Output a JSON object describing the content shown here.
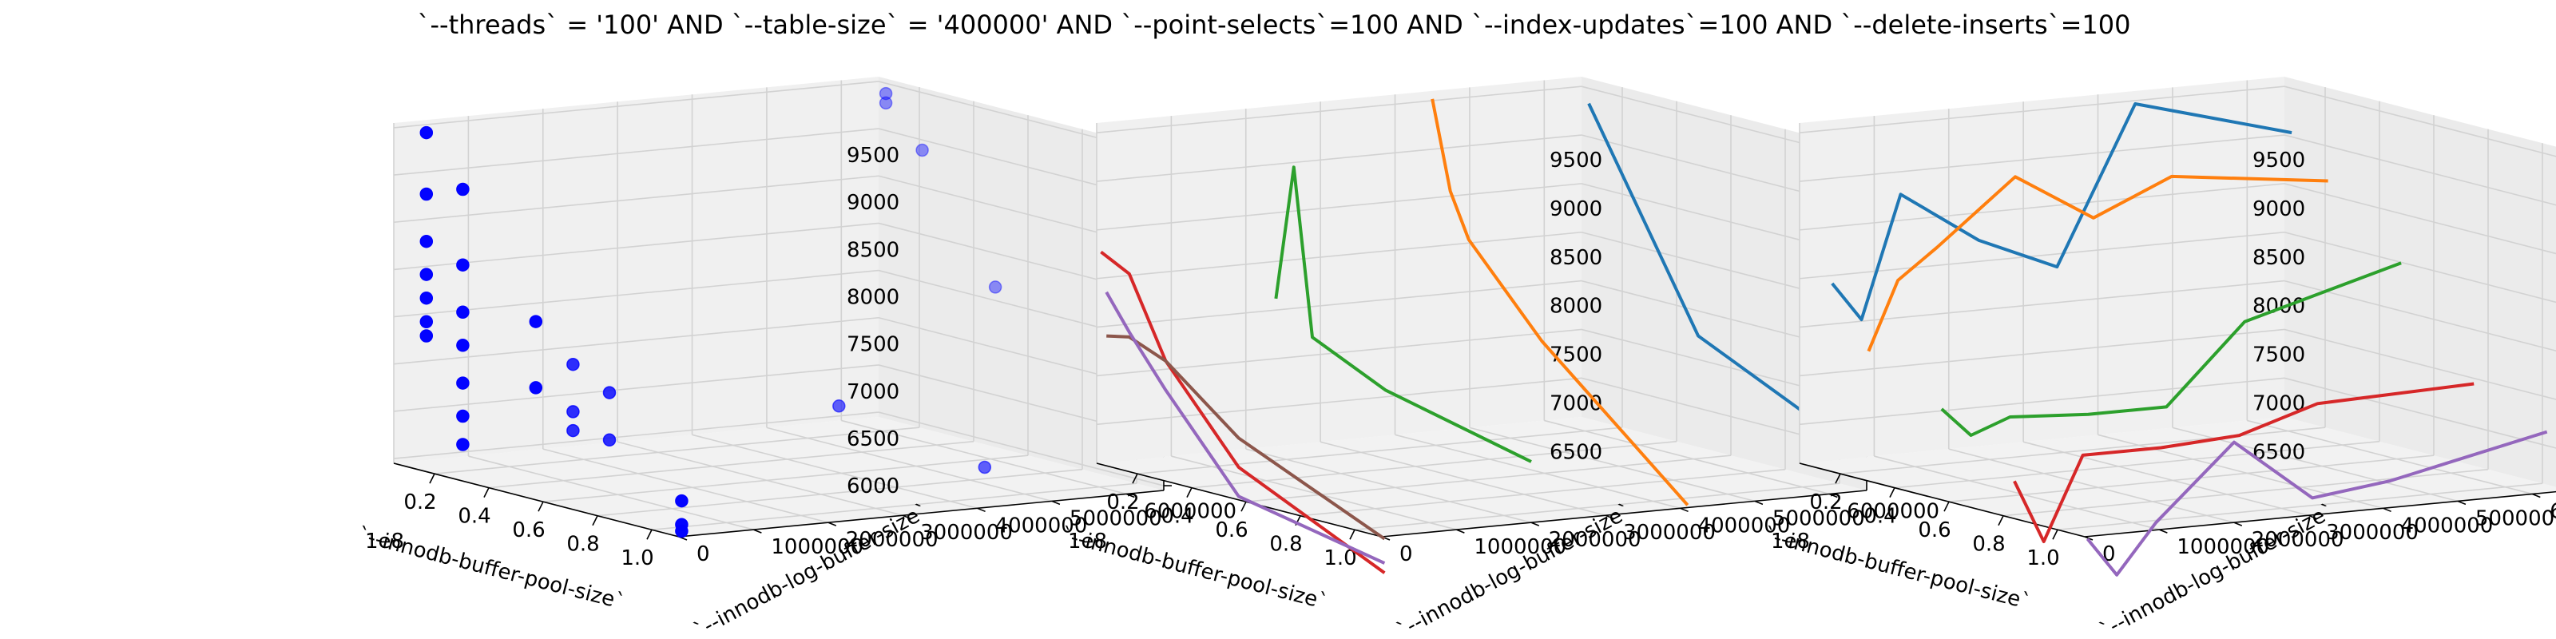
{
  "figure": {
    "title": "`--threads` = '100' AND `--table-size` = '400000'  AND `--point-selects`=100 AND `--index-updates`=100 AND `--delete-inserts`=100"
  },
  "chart_data": [
    {
      "type": "scatter",
      "projection": "3d",
      "xlabel": "`--innodb-buffer-pool-size`",
      "ylabel": "`--innodb-log-buffer-size`",
      "zlabel": "",
      "x_offset_label": "1e8",
      "xlim": [
        0.05,
        1.1
      ],
      "ylim": [
        0,
        6500000
      ],
      "zlim": [
        5950,
        9550
      ],
      "xticks": [
        "0.2",
        "0.4",
        "0.6",
        "0.8",
        "1.0"
      ],
      "yticks": [
        "0",
        "1000000",
        "2000000",
        "3000000",
        "4000000",
        "5000000",
        "6000000"
      ],
      "zticks": [
        "6000",
        "6500",
        "7000",
        "7500",
        "8000",
        "8500",
        "9000",
        "9500"
      ],
      "grid": true,
      "series": [
        {
          "color": "#0000ff",
          "points": [
            [
              0.134,
              131072,
              9500
            ],
            [
              0.134,
              131072,
              8850
            ],
            [
              0.134,
              131072,
              8350
            ],
            [
              0.134,
              131072,
              8000
            ],
            [
              0.134,
              131072,
              7750
            ],
            [
              0.134,
              131072,
              7500
            ],
            [
              0.134,
              131072,
              7350
            ],
            [
              0.268,
              131072,
              9000
            ],
            [
              0.268,
              131072,
              8200
            ],
            [
              0.268,
              131072,
              7700
            ],
            [
              0.268,
              131072,
              7350
            ],
            [
              0.268,
              131072,
              6950
            ],
            [
              0.268,
              131072,
              6600
            ],
            [
              0.268,
              131072,
              6300
            ],
            [
              0.134,
              2097152,
              6900
            ],
            [
              0.134,
              2097152,
              6400
            ],
            [
              0.134,
              2097152,
              6200
            ],
            [
              0.268,
              2097152,
              6700
            ],
            [
              0.268,
              2097152,
              6200
            ],
            [
              0.537,
              131072,
              7800
            ],
            [
              0.537,
              131072,
              7100
            ],
            [
              1.074,
              131072,
              6300
            ],
            [
              1.074,
              131072,
              6050
            ],
            [
              1.074,
              131072,
              5980
            ],
            [
              0.537,
              4194304,
              6600
            ],
            [
              1.074,
              4194304,
              6350
            ],
            [
              0.134,
              6291456,
              9450
            ],
            [
              0.134,
              6291456,
              9350
            ],
            [
              0.268,
              6291456,
              8950
            ],
            [
              0.537,
              6291456,
              7700
            ],
            [
              1.074,
              6291456,
              7200
            ]
          ]
        }
      ]
    },
    {
      "type": "line",
      "projection": "3d",
      "xlabel": "`--innodb-buffer-pool-size`",
      "ylabel": "`--innodb-log-buffer-size`",
      "zlabel": "",
      "x_offset_label": "1e8",
      "xlim": [
        0.05,
        1.1
      ],
      "ylim": [
        0,
        6500000
      ],
      "zlim": [
        6100,
        9600
      ],
      "xticks": [
        "0.2",
        "0.4",
        "0.6",
        "0.8",
        "1.0"
      ],
      "yticks": [
        "0",
        "1000000",
        "2000000",
        "3000000",
        "4000000",
        "5000000",
        "6000000"
      ],
      "zticks": [
        "6500",
        "7000",
        "7500",
        "8000",
        "8500",
        "9000",
        "9500"
      ],
      "grid": true,
      "series": [
        {
          "color": "#1f77b4",
          "x": [
            0.134,
            0.537,
            1.074
          ],
          "y": [
            6291456,
            6291456,
            6291456
          ],
          "z": [
            9400,
            7300,
            6600
          ]
        },
        {
          "color": "#ff7f0e",
          "x": [
            0.134,
            0.2,
            0.268,
            0.537,
            1.074
          ],
          "y": [
            4194304,
            4194304,
            4194304,
            4194304,
            4194304
          ],
          "z": [
            9600,
            8700,
            8250,
            7400,
            6100
          ]
        },
        {
          "color": "#2ca02c",
          "x": [
            0.134,
            0.2,
            0.268,
            0.537,
            1.074
          ],
          "y": [
            2097152,
            2097152,
            2097152,
            2097152,
            2097152
          ],
          "z": [
            7700,
            9100,
            7400,
            7050,
            6700
          ]
        },
        {
          "color": "#d62728",
          "x": [
            0.03,
            0.134,
            0.268,
            0.537,
            1.074
          ],
          "y": [
            131072,
            131072,
            131072,
            131072,
            131072
          ],
          "z": [
            8250,
            8100,
            7300,
            6400,
            5700
          ]
        },
        {
          "color": "#8c564b",
          "x": [
            0.05,
            0.134,
            0.268,
            0.537,
            1.074
          ],
          "y": [
            131072,
            131072,
            131072,
            131072,
            131072
          ],
          "z": [
            7400,
            7450,
            7300,
            6700,
            6050
          ]
        },
        {
          "color": "#9467bd",
          "x": [
            0.05,
            0.134,
            0.268,
            0.537,
            1.074
          ],
          "y": [
            131072,
            131072,
            131072,
            131072,
            131072
          ],
          "z": [
            7850,
            7500,
            7000,
            6100,
            5800
          ]
        }
      ]
    },
    {
      "type": "line",
      "projection": "3d",
      "xlabel": "`--innodb-buffer-pool-size`",
      "ylabel": "`--innodb-log-buffer-size`",
      "zlabel": "",
      "x_offset_label": "1e8",
      "xlim": [
        0.05,
        1.1
      ],
      "ylim": [
        0,
        6500000
      ],
      "zlim": [
        6100,
        9600
      ],
      "xticks": [
        "0.2",
        "0.4",
        "0.6",
        "0.8",
        "1.0"
      ],
      "yticks": [
        "0",
        "1000000",
        "2000000",
        "3000000",
        "4000000",
        "5000000",
        "6000000"
      ],
      "zticks": [
        "6500",
        "7000",
        "7500",
        "8000",
        "8500",
        "9000",
        "9500"
      ],
      "grid": true,
      "series": [
        {
          "color": "#1f77b4",
          "x": [
            0.134,
            0.134,
            0.134,
            0.134,
            0.134,
            0.134,
            0.134
          ],
          "y": [
            131072,
            524288,
            1048576,
            2097152,
            3145728,
            4194304,
            6291456
          ],
          "z": [
            8000,
            7600,
            8850,
            8300,
            7950,
            9550,
            9100
          ]
        },
        {
          "color": "#ff7f0e",
          "x": [
            0.268,
            0.268,
            0.268,
            0.268,
            0.268,
            0.268,
            0.268
          ],
          "y": [
            131072,
            524288,
            1048576,
            2097152,
            3145728,
            4194304,
            6291456
          ],
          "z": [
            7400,
            8100,
            8400,
            9050,
            8550,
            8900,
            8700
          ]
        },
        {
          "color": "#2ca02c",
          "x": [
            0.537,
            0.537,
            0.537,
            0.537,
            0.537,
            0.537,
            0.537
          ],
          "y": [
            131072,
            524288,
            1048576,
            2097152,
            3145728,
            4194304,
            6291456
          ],
          "z": [
            7000,
            6700,
            6850,
            6800,
            6800,
            7600,
            8050
          ]
        },
        {
          "color": "#d62728",
          "x": [
            0.805,
            0.805,
            0.805,
            0.805,
            0.805,
            0.805,
            0.805
          ],
          "y": [
            131072,
            524288,
            1048576,
            2097152,
            3145728,
            4194304,
            6291456
          ],
          "z": [
            6450,
            5800,
            6650,
            6650,
            6700,
            6950,
            7000
          ]
        },
        {
          "color": "#9467bd",
          "x": [
            1.074,
            1.074,
            1.074,
            1.074,
            1.074,
            1.074,
            1.074
          ],
          "y": [
            131072,
            524288,
            1048576,
            2097152,
            3145728,
            4194304,
            6291456
          ],
          "z": [
            6050,
            5650,
            6150,
            6900,
            6250,
            6350,
            6700
          ]
        }
      ]
    }
  ]
}
